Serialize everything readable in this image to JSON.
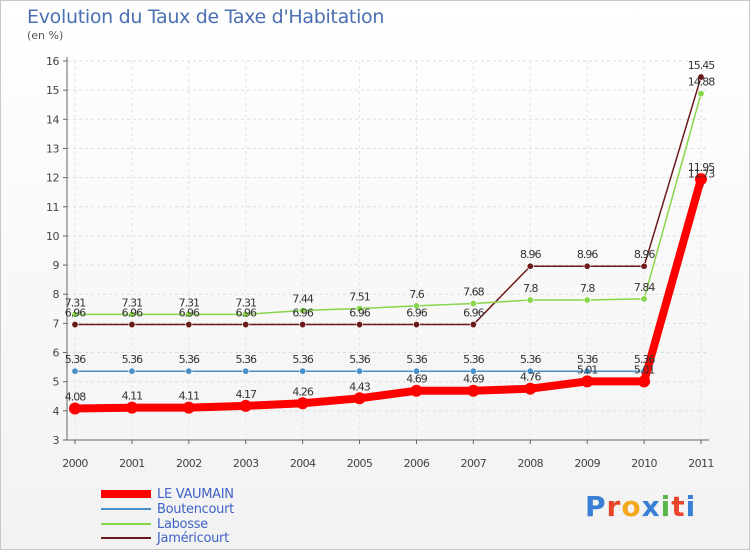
{
  "chart_data": {
    "type": "line",
    "title": "Evolution du Taux de Taxe d'Habitation",
    "ylabel": "(en %)",
    "xlabel": "",
    "ylim": [
      3,
      16
    ],
    "yticks": [
      "3",
      "4",
      "5",
      "6",
      "7",
      "8",
      "9",
      "10",
      "11",
      "12",
      "13",
      "14",
      "15",
      "16"
    ],
    "categories": [
      "2000",
      "2001",
      "2002",
      "2003",
      "2004",
      "2005",
      "2006",
      "2007",
      "2008",
      "2009",
      "2010",
      "2011"
    ],
    "series": [
      {
        "name": "LE VAUMAIN",
        "color": "#ff0000",
        "values": [
          4.08,
          4.11,
          4.11,
          4.17,
          4.26,
          4.43,
          4.69,
          4.69,
          4.76,
          5.01,
          5.01,
          11.95
        ],
        "labels": [
          "4.08",
          "4.11",
          "4.11",
          "4.17",
          "4.26",
          "4.43",
          "4.69",
          "4.69",
          "4.76",
          "5.01",
          "5.01",
          "11.95"
        ]
      },
      {
        "name": "Boutencourt",
        "color": "#4a90c8",
        "values": [
          5.36,
          5.36,
          5.36,
          5.36,
          5.36,
          5.36,
          5.36,
          5.36,
          5.36,
          5.36,
          5.36,
          11.73
        ],
        "labels": [
          "5.36",
          "5.36",
          "5.36",
          "5.36",
          "5.36",
          "5.36",
          "5.36",
          "5.36",
          "5.36",
          "5.36",
          "5.36",
          "11.73"
        ]
      },
      {
        "name": "Labosse",
        "color": "#88d64a",
        "values": [
          7.31,
          7.31,
          7.31,
          7.31,
          7.44,
          7.51,
          7.6,
          7.68,
          7.8,
          7.8,
          7.84,
          14.88
        ],
        "labels": [
          "7.31",
          "7.31",
          "7.31",
          "7.31",
          "7.44",
          "7.51",
          "7.6",
          "7.68",
          "7.8",
          "7.8",
          "7.84",
          "14.88"
        ]
      },
      {
        "name": "Jaméricourt",
        "color": "#6b1a1a",
        "values": [
          6.96,
          6.96,
          6.96,
          6.96,
          6.96,
          6.96,
          6.96,
          6.96,
          8.96,
          8.96,
          8.96,
          15.45
        ],
        "labels": [
          "6.96",
          "6.96",
          "6.96",
          "6.96",
          "6.96",
          "6.96",
          "6.96",
          "6.96",
          "8.96",
          "8.96",
          "8.96",
          "15.45"
        ]
      }
    ]
  },
  "logo": {
    "text": "Proxiti"
  }
}
